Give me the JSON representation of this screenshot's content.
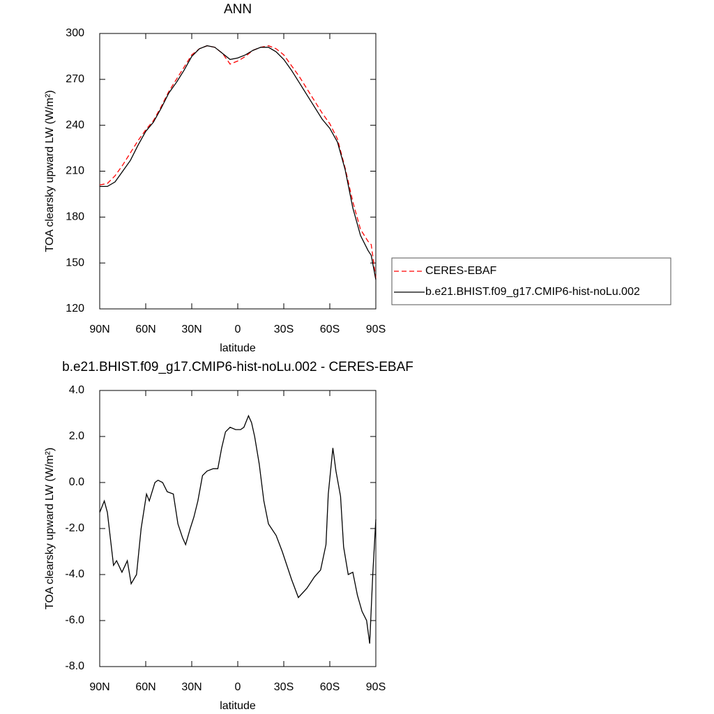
{
  "chart_data": [
    {
      "type": "line",
      "title": "ANN",
      "x_label": "latitude",
      "y_label": "TOA clearsky upward LW (W/m²)",
      "x": [
        90,
        85,
        80,
        75,
        70,
        65,
        60,
        55,
        50,
        45,
        40,
        35,
        30,
        25,
        20,
        15,
        10,
        5,
        0,
        -5,
        -10,
        -15,
        -20,
        -25,
        -30,
        -35,
        -40,
        -45,
        -50,
        -55,
        -60,
        -65,
        -70,
        -75,
        -80,
        -85,
        -87,
        -90
      ],
      "series": [
        {
          "name": "CERES-EBAF",
          "color": "#ff0000",
          "dashed": true,
          "values": [
            201,
            202,
            207,
            214,
            222,
            230,
            237,
            243,
            252,
            262,
            270,
            278,
            286,
            290,
            292,
            291,
            287,
            280,
            282,
            285,
            289,
            291,
            292,
            290,
            286,
            279,
            272,
            264,
            256,
            248,
            241,
            231,
            212,
            190,
            172,
            164,
            162,
            140
          ]
        },
        {
          "name": "b.e21.BHIST.f09_g17.CMIP6-hist-noLu.002",
          "color": "#000000",
          "dashed": false,
          "values": [
            200,
            200,
            203,
            210,
            217,
            227,
            236,
            242,
            251,
            261,
            268,
            276,
            285,
            290,
            292,
            291,
            287,
            283,
            284,
            286,
            289,
            291,
            291,
            288,
            283,
            276,
            268,
            260,
            252,
            244,
            238,
            229,
            211,
            186,
            168,
            158,
            155,
            139
          ]
        }
      ],
      "xlim": [
        90,
        -90
      ],
      "xticks": [
        {
          "value": 90,
          "label": "90N"
        },
        {
          "value": 60,
          "label": "60N"
        },
        {
          "value": 30,
          "label": "30N"
        },
        0,
        {
          "value": -30,
          "label": "30S"
        },
        {
          "value": -60,
          "label": "60S"
        },
        {
          "value": -90,
          "label": "90S"
        }
      ],
      "ylim": [
        120,
        300
      ],
      "yticks": [
        120,
        150,
        180,
        210,
        240,
        270,
        300
      ],
      "legend": "right"
    },
    {
      "type": "line",
      "title": "b.e21.BHIST.f09_g17.CMIP6-hist-noLu.002 - CERES-EBAF",
      "x_label": "latitude",
      "y_label": "TOA clearsky upward LW (W/m²)",
      "x": [
        90,
        87,
        85,
        81,
        79,
        75.5,
        72,
        69.5,
        66,
        63,
        59.5,
        57.7,
        54,
        52,
        49,
        46,
        42,
        39,
        36,
        34,
        31,
        28.6,
        26,
        23,
        20,
        16,
        13,
        10.5,
        8,
        5,
        1.4,
        -1.8,
        -4,
        -7,
        -9,
        -11,
        -14,
        -17,
        -20,
        -25,
        -29,
        -35,
        -39.5,
        -45,
        -50,
        -54,
        -57.5,
        -59,
        -62,
        -64,
        -67,
        -69,
        -72,
        -75,
        -78,
        -81,
        -84,
        -86,
        -88,
        -90
      ],
      "series": [
        {
          "color": "#000000",
          "dashed": false,
          "values": [
            -1.3,
            -0.8,
            -1.3,
            -3.6,
            -3.4,
            -3.9,
            -3.4,
            -4.4,
            -4.0,
            -2.0,
            -0.5,
            -0.8,
            0.0,
            0.1,
            0.0,
            -0.4,
            -0.5,
            -1.8,
            -2.4,
            -2.7,
            -2.0,
            -1.5,
            -0.8,
            0.3,
            0.5,
            0.6,
            0.6,
            1.5,
            2.2,
            2.4,
            2.3,
            2.3,
            2.4,
            2.9,
            2.6,
            2.0,
            0.8,
            -0.8,
            -1.8,
            -2.3,
            -3.0,
            -4.2,
            -5.0,
            -4.6,
            -4.1,
            -3.8,
            -2.7,
            -0.5,
            1.5,
            0.5,
            -0.6,
            -2.8,
            -4.0,
            -3.9,
            -4.9,
            -5.6,
            -6.0,
            -7.0,
            -4.0,
            -1.6
          ]
        }
      ],
      "xlim": [
        90,
        -90
      ],
      "xticks": [
        {
          "value": 90,
          "label": "90N"
        },
        {
          "value": 60,
          "label": "60N"
        },
        {
          "value": 30,
          "label": "30N"
        },
        0,
        {
          "value": -30,
          "label": "30S"
        },
        {
          "value": -60,
          "label": "60S"
        },
        {
          "value": -90,
          "label": "90S"
        }
      ],
      "ylim": [
        -8,
        4
      ],
      "yticks": [
        {
          "value": -8,
          "label": "-8.0"
        },
        {
          "value": -6,
          "label": "-6.0"
        },
        {
          "value": -4,
          "label": "-4.0"
        },
        {
          "value": -2,
          "label": "-2.0"
        },
        {
          "value": 0,
          "label": "0.0"
        },
        {
          "value": 2,
          "label": "2.0"
        },
        {
          "value": 4,
          "label": "4.0"
        }
      ]
    }
  ]
}
